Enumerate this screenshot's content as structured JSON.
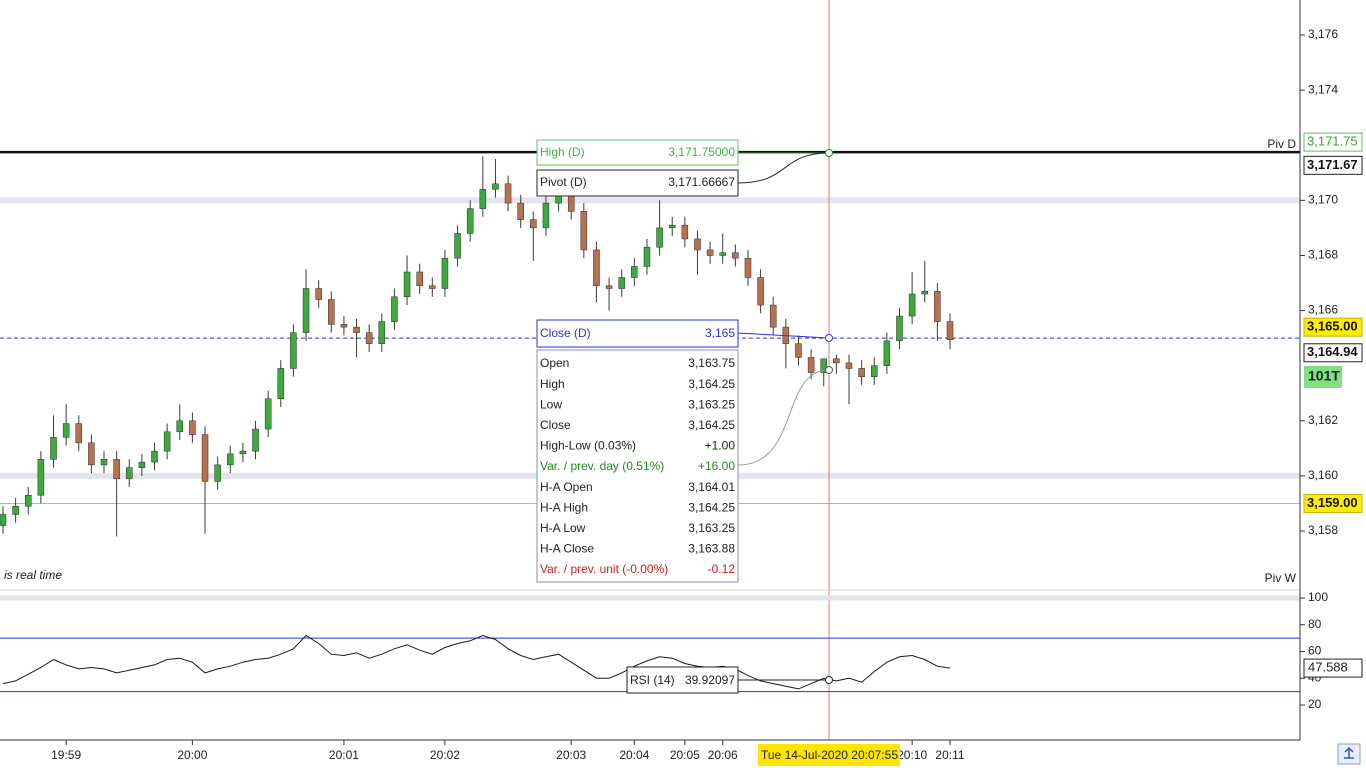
{
  "chart_data": [
    {
      "type": "candlestick",
      "categories": [
        null,
        null,
        null,
        null,
        null,
        "19:59",
        null,
        null,
        null,
        null,
        null,
        null,
        null,
        null,
        null,
        "20:00",
        null,
        null,
        null,
        null,
        null,
        null,
        null,
        null,
        null,
        null,
        null,
        "20:01",
        null,
        null,
        null,
        null,
        null,
        null,
        null,
        "20:02",
        null,
        null,
        null,
        null,
        null,
        null,
        null,
        null,
        null,
        "20:03",
        null,
        null,
        null,
        null,
        "20:04",
        null,
        null,
        null,
        "20:05",
        null,
        null,
        "20:06",
        null,
        null,
        null,
        null,
        null,
        null,
        null,
        null,
        null,
        null,
        null,
        null,
        null,
        null,
        "20:10",
        null,
        null,
        "20:11"
      ],
      "open": [
        3158.2,
        3158.6,
        3158.9,
        3159.3,
        3160.6,
        3161.4,
        3161.9,
        3161.2,
        3160.4,
        3160.6,
        3159.9,
        3160.3,
        3160.5,
        3160.9,
        3161.6,
        3162.0,
        3161.5,
        3159.8,
        3160.4,
        3160.8,
        3160.9,
        3161.7,
        3162.8,
        3163.9,
        3165.2,
        3166.8,
        3166.4,
        3165.5,
        3165.4,
        3165.2,
        3164.8,
        3165.6,
        3166.5,
        3167.4,
        3166.9,
        3166.8,
        3167.9,
        3168.8,
        3169.7,
        3170.4,
        3170.6,
        3169.9,
        3169.3,
        3169.0,
        3169.9,
        3170.2,
        3169.6,
        3168.2,
        3166.9,
        3166.8,
        3167.2,
        3167.6,
        3168.3,
        3169.0,
        3169.1,
        3168.6,
        3168.2,
        3168.0,
        3168.1,
        3167.9,
        3167.2,
        3166.2,
        3165.4,
        3164.8,
        3164.3,
        3163.75,
        3164.25,
        3164.1,
        3163.9,
        3163.6,
        3164.0,
        3164.9,
        3165.8,
        3166.6,
        3166.7,
        3165.6
      ],
      "high": [
        3158.9,
        3159.2,
        3159.6,
        3160.9,
        3162.2,
        3162.6,
        3162.2,
        3161.5,
        3160.9,
        3160.9,
        3160.6,
        3160.8,
        3161.2,
        3161.9,
        3162.6,
        3162.3,
        3161.8,
        3160.7,
        3161.1,
        3161.2,
        3162.0,
        3163.1,
        3164.2,
        3165.5,
        3167.5,
        3167.1,
        3166.7,
        3165.8,
        3165.7,
        3165.5,
        3165.9,
        3166.8,
        3168.0,
        3167.7,
        3167.2,
        3168.2,
        3169.1,
        3170.0,
        3171.6,
        3171.5,
        3170.9,
        3170.2,
        3169.6,
        3170.2,
        3171.0,
        3170.5,
        3169.9,
        3168.5,
        3167.2,
        3167.5,
        3167.9,
        3168.6,
        3170.0,
        3169.4,
        3169.4,
        3168.9,
        3168.5,
        3168.8,
        3168.4,
        3168.2,
        3167.5,
        3166.5,
        3165.7,
        3165.1,
        3164.6,
        3164.25,
        3164.4,
        3164.4,
        3164.2,
        3164.3,
        3165.2,
        3166.1,
        3167.4,
        3167.8,
        3167.0,
        3165.9
      ],
      "low": [
        3157.9,
        3158.3,
        3158.6,
        3159.0,
        3160.3,
        3161.1,
        3160.9,
        3160.1,
        3160.1,
        3157.8,
        3159.6,
        3160.0,
        3160.2,
        3160.6,
        3161.3,
        3161.2,
        3157.9,
        3159.5,
        3160.1,
        3160.5,
        3160.6,
        3161.4,
        3162.5,
        3163.6,
        3164.9,
        3166.1,
        3165.2,
        3165.1,
        3164.3,
        3164.5,
        3164.5,
        3165.3,
        3166.2,
        3166.6,
        3166.5,
        3166.5,
        3167.6,
        3168.5,
        3169.4,
        3170.1,
        3169.6,
        3169.0,
        3167.8,
        3168.7,
        3169.6,
        3169.3,
        3167.9,
        3166.3,
        3166.0,
        3166.5,
        3166.9,
        3167.3,
        3168.0,
        3168.7,
        3168.3,
        3167.3,
        3167.7,
        3167.7,
        3167.6,
        3166.9,
        3165.9,
        3165.1,
        3163.9,
        3164.0,
        3163.5,
        3163.25,
        3163.7,
        3162.6,
        3163.3,
        3163.3,
        3163.7,
        3164.6,
        3165.5,
        3166.3,
        3164.9,
        3164.6
      ],
      "close": [
        3158.6,
        3158.9,
        3159.3,
        3160.6,
        3161.4,
        3161.9,
        3161.2,
        3160.4,
        3160.6,
        3159.9,
        3160.3,
        3160.5,
        3160.9,
        3161.6,
        3162.0,
        3161.5,
        3159.8,
        3160.4,
        3160.8,
        3160.9,
        3161.7,
        3162.8,
        3163.9,
        3165.2,
        3166.8,
        3166.4,
        3165.5,
        3165.4,
        3165.2,
        3164.8,
        3165.6,
        3166.5,
        3167.4,
        3166.9,
        3166.8,
        3167.9,
        3168.8,
        3169.7,
        3170.4,
        3170.6,
        3169.9,
        3169.3,
        3169.0,
        3169.9,
        3170.2,
        3169.6,
        3168.2,
        3166.9,
        3166.8,
        3167.2,
        3167.6,
        3168.3,
        3169.0,
        3169.1,
        3168.6,
        3168.2,
        3168.0,
        3168.1,
        3167.9,
        3167.2,
        3166.2,
        3165.4,
        3164.8,
        3164.3,
        3163.75,
        3164.25,
        3164.1,
        3163.9,
        3163.6,
        3164.0,
        3164.9,
        3165.8,
        3166.6,
        3166.7,
        3165.6,
        3164.94
      ],
      "colors": {
        "up": "#3daa3d",
        "down": "#b8714f",
        "wick": "#3a3a3a"
      },
      "ylim": [
        3155.86,
        3177.27
      ],
      "yticks": [
        {
          "value": 3176,
          "label": "3,176"
        },
        {
          "value": 3174,
          "label": "3,174"
        },
        {
          "value": 3170,
          "label": "3,170"
        },
        {
          "value": 3168,
          "label": "3,168"
        },
        {
          "value": 3166,
          "label": "3,166"
        },
        {
          "value": 3162,
          "label": "3,162"
        },
        {
          "value": 3160,
          "label": "3,160"
        },
        {
          "value": 3158,
          "label": "3,158"
        }
      ],
      "level_lines": [
        {
          "value": 3170,
          "color": "#e3e4ec",
          "width": 6
        },
        {
          "value": 3160,
          "color": "#e3e4ec",
          "width": 6
        },
        {
          "value": 3171.75,
          "color": "#111111",
          "width": 2.5
        },
        {
          "value": 3165,
          "color": "#2a35d0",
          "width": 1,
          "dash": true
        },
        {
          "value": 3159,
          "color": "#f29a9a",
          "width": 1
        }
      ],
      "price_labels": [
        {
          "value": 3171.75,
          "label": "3,171.75",
          "style": "green"
        },
        {
          "value": 3171.67,
          "label": "3,171.67",
          "style": "black"
        },
        {
          "value": 3165,
          "label": "3,165.00",
          "style": "yellow"
        },
        {
          "value": 3164.94,
          "label": "3,164.94",
          "style": "black"
        },
        {
          "value": 3159,
          "label": "3,159.00",
          "style": "yellow"
        }
      ],
      "tick_count": "101T",
      "annotations": {
        "realtime": "is real time",
        "pivot_day": "Piv D",
        "pivot_week": "Piv W"
      },
      "crosshair_label": "Tue 14-Jul-2020 20:07:55"
    },
    {
      "type": "line",
      "name": "RSI (14)",
      "color": "#1a1a1a",
      "values": [
        36,
        38,
        43,
        48,
        54,
        50,
        47,
        48,
        47,
        44,
        46,
        48,
        50,
        54,
        55,
        52,
        44,
        47,
        49,
        52,
        54,
        55,
        58,
        62,
        72,
        66,
        58,
        57,
        59,
        55,
        58,
        62,
        65,
        61,
        58,
        63,
        66,
        68,
        72,
        69,
        62,
        57,
        54,
        56,
        58,
        52,
        46,
        40,
        40,
        44,
        49,
        53,
        56,
        55,
        51,
        49,
        48,
        49,
        47,
        42,
        38,
        36,
        34,
        32,
        36,
        39.92097,
        38,
        40,
        37,
        45,
        52,
        56,
        57,
        54,
        49,
        47.588
      ],
      "ylim": [
        -4.7,
        106
      ],
      "yticks": [
        100,
        80,
        60,
        40,
        20
      ],
      "bands": [
        70,
        30
      ],
      "band_color": "#2a35c8"
    }
  ],
  "tooltip": {
    "high_d": {
      "label": "High (D)",
      "value": "3,171.75000"
    },
    "pivot_d": {
      "label": "Pivot (D)",
      "value": "3,171.66667"
    },
    "close_d": {
      "label": "Close (D)",
      "value": "3,165"
    },
    "rows": [
      {
        "label": "Open",
        "value": "3,163.75"
      },
      {
        "label": "High",
        "value": "3,164.25"
      },
      {
        "label": "Low",
        "value": "3,163.25"
      },
      {
        "label": "Close",
        "value": "3,164.25"
      },
      {
        "label": "High-Low (0.03%)",
        "value": "+1.00"
      },
      {
        "label": "Var. / prev. day (0.51%)",
        "value": "+16.00",
        "color": "#1e8a1e"
      },
      {
        "label": "H-A Open",
        "value": "3,164.01"
      },
      {
        "label": "H-A High",
        "value": "3,164.25"
      },
      {
        "label": "H-A Low",
        "value": "3,163.25"
      },
      {
        "label": "H-A Close",
        "value": "3,163.88"
      },
      {
        "label": "Var. / prev. unit (-0.00%)",
        "value": "-0.12",
        "color": "#c82020"
      }
    ]
  }
}
